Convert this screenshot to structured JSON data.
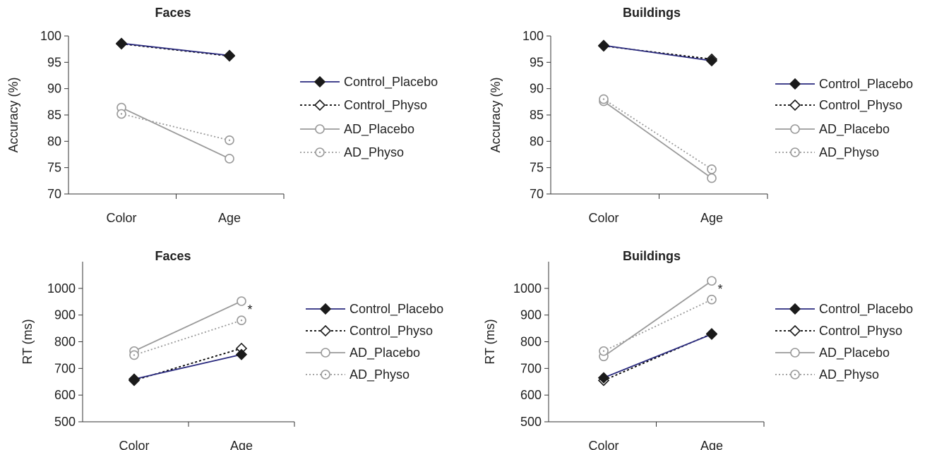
{
  "chart_data": [
    {
      "type": "line",
      "title": "Faces",
      "ylabel": "Accuracy (%)",
      "xlabel": "",
      "categories": [
        "Color",
        "Age"
      ],
      "ylim": [
        70,
        100
      ],
      "yticks": [
        "70",
        "75",
        "80",
        "85",
        "90",
        "95",
        "100"
      ],
      "series": [
        {
          "name": "Control_Placebo",
          "values": [
            98.6,
            96.3
          ]
        },
        {
          "name": "Control_Physo",
          "values": [
            98.5,
            96.2
          ]
        },
        {
          "name": "AD_Placebo",
          "values": [
            86.4,
            76.7
          ]
        },
        {
          "name": "AD_Physo",
          "values": [
            85.2,
            80.2
          ]
        }
      ],
      "annotations": [],
      "grid": false,
      "legend": "right"
    },
    {
      "type": "line",
      "title": "Buildings",
      "ylabel": "Accuracy (%)",
      "xlabel": "",
      "categories": [
        "Color",
        "Age"
      ],
      "ylim": [
        70,
        100
      ],
      "yticks": [
        "70",
        "75",
        "80",
        "85",
        "90",
        "95",
        "100"
      ],
      "series": [
        {
          "name": "Control_Placebo",
          "values": [
            98.2,
            95.3
          ]
        },
        {
          "name": "Control_Physo",
          "values": [
            98.1,
            95.6
          ]
        },
        {
          "name": "AD_Placebo",
          "values": [
            87.6,
            73.0
          ]
        },
        {
          "name": "AD_Physo",
          "values": [
            88.0,
            74.7
          ]
        }
      ],
      "annotations": [],
      "grid": false,
      "legend": "right"
    },
    {
      "type": "line",
      "title": "Faces",
      "ylabel": "RT (ms)",
      "xlabel": "",
      "categories": [
        "Color",
        "Age"
      ],
      "ylim": [
        500,
        1100
      ],
      "yticks": [
        "500",
        "600",
        "700",
        "800",
        "900",
        "1000"
      ],
      "series": [
        {
          "name": "Control_Placebo",
          "values": [
            660,
            752
          ]
        },
        {
          "name": "Control_Physo",
          "values": [
            655,
            775
          ]
        },
        {
          "name": "AD_Placebo",
          "values": [
            765,
            952
          ]
        },
        {
          "name": "AD_Physo",
          "values": [
            750,
            880
          ]
        }
      ],
      "annotations": [
        "*"
      ],
      "grid": false,
      "legend": "right"
    },
    {
      "type": "line",
      "title": "Buildings",
      "ylabel": "RT (ms)",
      "xlabel": "",
      "categories": [
        "Color",
        "Age"
      ],
      "ylim": [
        500,
        1100
      ],
      "yticks": [
        "500",
        "600",
        "700",
        "800",
        "900",
        "1000"
      ],
      "series": [
        {
          "name": "Control_Placebo",
          "values": [
            665,
            828
          ]
        },
        {
          "name": "Control_Physo",
          "values": [
            655,
            830
          ]
        },
        {
          "name": "AD_Placebo",
          "values": [
            745,
            1028
          ]
        },
        {
          "name": "AD_Physo",
          "values": [
            765,
            958
          ]
        }
      ],
      "annotations": [
        "*"
      ],
      "grid": false,
      "legend": "right"
    }
  ],
  "styles": {
    "Control_Placebo": {
      "line": "#2a2a7e",
      "dash": "",
      "marker": "diamond-filled",
      "marker_color": "#1a1a1a"
    },
    "Control_Physo": {
      "line": "#000000",
      "dash": "3,3",
      "marker": "diamond-open",
      "marker_color": "#1a1a1a"
    },
    "AD_Placebo": {
      "line": "#9a9a9a",
      "dash": "",
      "marker": "circle-open",
      "marker_color": "#9a9a9a"
    },
    "AD_Physo": {
      "line": "#9a9a9a",
      "dash": "2,3",
      "marker": "circle-dot",
      "marker_color": "#9a9a9a"
    }
  }
}
